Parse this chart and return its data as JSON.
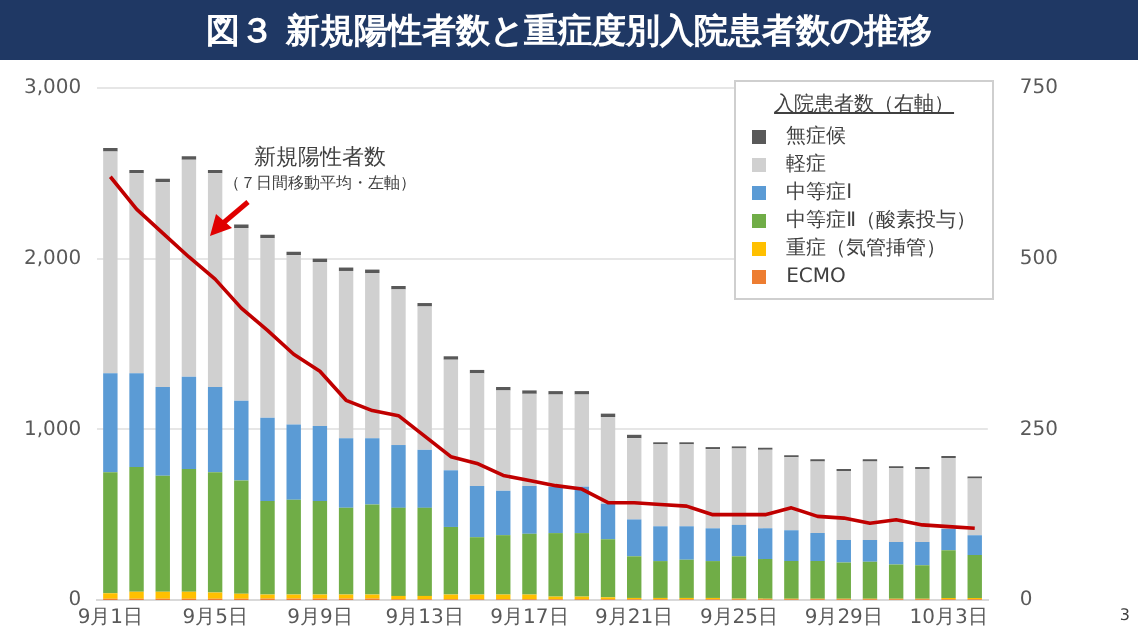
{
  "chart_data": {
    "type": "bar",
    "title": "図３ 新規陽性者数と重症度別入院患者数の推移",
    "legend_title": "入院患者数（右軸）",
    "categories": [
      "9月1日",
      null,
      null,
      null,
      "9月5日",
      null,
      null,
      null,
      "9月9日",
      null,
      null,
      null,
      "9月13日",
      null,
      null,
      null,
      "9月17日",
      null,
      null,
      null,
      "9月21日",
      null,
      null,
      null,
      "9月25日",
      null,
      null,
      null,
      "9月29日",
      null,
      null,
      null,
      "10月3日",
      null
    ],
    "series": [
      {
        "name": "ECMO",
        "color": "#ed7d31",
        "axis": "y2",
        "values": [
          2,
          2,
          2,
          2,
          2,
          2,
          2,
          2,
          2,
          2,
          2,
          1,
          1,
          1,
          1,
          1,
          1,
          1,
          1,
          1,
          1,
          1,
          1,
          1,
          1,
          1,
          1,
          1,
          1,
          1,
          1,
          1,
          1,
          1
        ]
      },
      {
        "name": "重症（気管挿管）",
        "color": "#ffc000",
        "axis": "y2",
        "values": [
          8,
          10,
          10,
          10,
          9,
          7,
          6,
          6,
          6,
          6,
          6,
          5,
          5,
          7,
          7,
          7,
          7,
          4,
          4,
          3,
          2,
          2,
          2,
          2,
          1,
          1,
          1,
          1,
          1,
          1,
          1,
          1,
          2,
          2
        ]
      },
      {
        "name": "中等症Ⅱ（酸素投与）",
        "color": "#70ad47",
        "axis": "y2",
        "values": [
          177,
          183,
          170,
          180,
          176,
          166,
          137,
          139,
          137,
          127,
          132,
          129,
          129,
          99,
          84,
          87,
          89,
          93,
          93,
          85,
          61,
          54,
          56,
          54,
          62,
          58,
          55,
          55,
          53,
          54,
          50,
          49,
          70,
          63
        ]
      },
      {
        "name": "中等症Ⅰ",
        "color": "#5b9bd5",
        "axis": "y2",
        "values": [
          145,
          137,
          130,
          135,
          125,
          117,
          122,
          110,
          110,
          102,
          97,
          92,
          85,
          83,
          75,
          65,
          70,
          68,
          68,
          52,
          54,
          51,
          49,
          48,
          46,
          45,
          45,
          41,
          33,
          32,
          33,
          34,
          31,
          29
        ]
      },
      {
        "name": "軽症",
        "color": "#d0d0d0",
        "axis": "y2",
        "values": [
          325,
          293,
          300,
          318,
          313,
          253,
          263,
          248,
          240,
          245,
          242,
          228,
          210,
          162,
          165,
          147,
          135,
          135,
          135,
          127,
          119,
          120,
          120,
          116,
          112,
          115,
          107,
          105,
          101,
          115,
          108,
          107,
          104,
          83
        ]
      },
      {
        "name": "無症候",
        "color": "#595959",
        "axis": "y2",
        "values": [
          5,
          5,
          5,
          5,
          5,
          5,
          5,
          5,
          5,
          5,
          5,
          5,
          5,
          5,
          5,
          5,
          5,
          5,
          5,
          5,
          5,
          3,
          3,
          3,
          3,
          3,
          3,
          3,
          3,
          3,
          3,
          3,
          3,
          3
        ]
      },
      {
        "type": "line",
        "color": "#c00000",
        "axis": "y",
        "values": [
          2480,
          2290,
          2150,
          2010,
          1880,
          1710,
          1580,
          1440,
          1340,
          1170,
          1110,
          1080,
          960,
          840,
          800,
          730,
          700,
          670,
          650,
          570,
          570,
          560,
          550,
          500,
          500,
          500,
          540,
          490,
          480,
          450,
          470,
          440,
          430,
          420
        ]
      }
    ],
    "stacked": true,
    "ylim": [
      0,
      3000
    ],
    "yticks": [
      0,
      {
        "value": 1000,
        "label": "1,000"
      },
      {
        "value": 2000,
        "label": "2,000"
      },
      {
        "value": 3000,
        "label": "3,000"
      }
    ],
    "y2lim": [
      0,
      750
    ],
    "y2ticks": [
      0,
      250,
      500,
      750
    ],
    "grid": "y",
    "legend": "top right",
    "annotations": [
      "新規陽性者数",
      "（７日間移動平均・左軸）",
      "3"
    ]
  }
}
